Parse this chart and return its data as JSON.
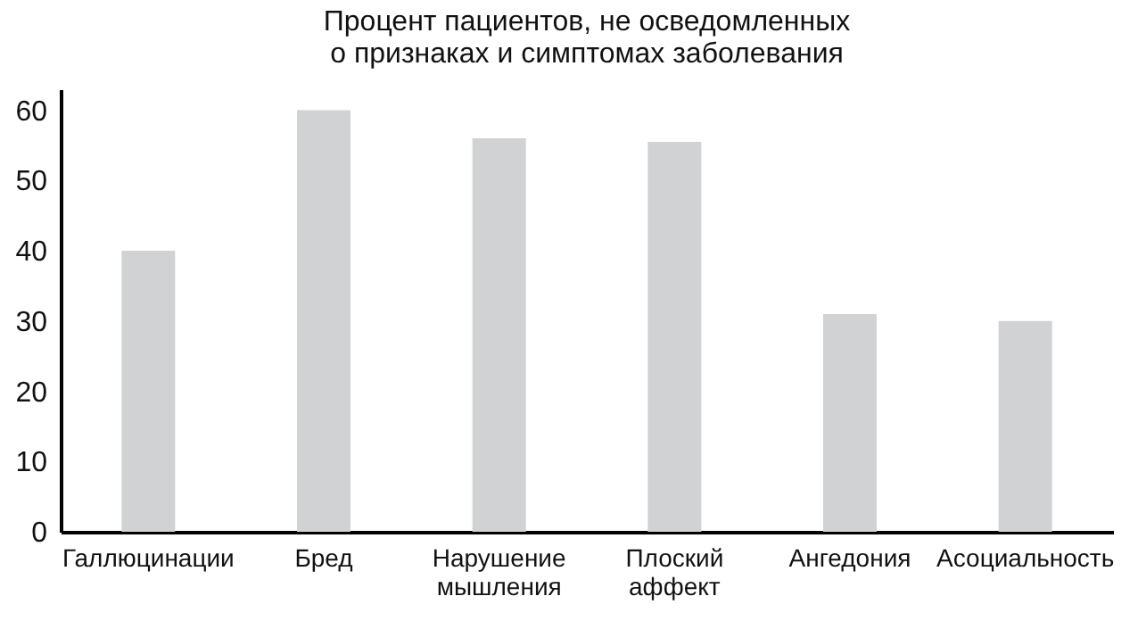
{
  "chart_data": {
    "type": "bar",
    "title": "Процент пациентов, не осведомленных о признаках и симптомах заболевания",
    "categories": [
      "Галлюцинации",
      "Бред",
      "Нарушение мышления",
      "Плоский аффект",
      "Ангедония",
      "Асоциальность"
    ],
    "values": [
      40,
      60,
      56,
      55.5,
      31,
      30
    ],
    "color": "#d1d2d4",
    "ylim": [
      0,
      63
    ],
    "yticks": [
      0,
      10,
      20,
      30,
      40,
      50,
      60
    ],
    "grid": false
  }
}
